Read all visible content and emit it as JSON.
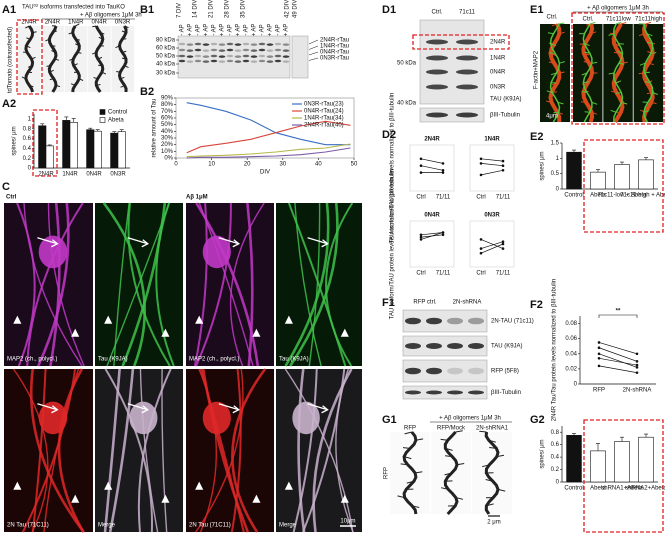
{
  "figure": {
    "A1": {
      "label": "A1",
      "title": "TAU⁰² isoforms transfected into TauKO",
      "treatment": "+ Aβ oligomers 1μM 3h",
      "columns": [
        "2N4R",
        "2N4R",
        "1N4R",
        "0N4R",
        "0N3R"
      ],
      "ylabel": "tdTomato (cotransfected)"
    },
    "A2": {
      "label": "A2",
      "chart_data": {
        "type": "bar",
        "ylabel": "spines/ μm",
        "categories": [
          "2N4R",
          "1N4R",
          "0N4R",
          "0N3R"
        ],
        "series": [
          {
            "name": "Control",
            "color": "#111111",
            "values": [
              0.86,
              0.97,
              0.78,
              0.71
            ],
            "errors": [
              0.04,
              0.07,
              0.03,
              0.03
            ]
          },
          {
            "name": "Abeta",
            "color": "#ffffff",
            "values": [
              0.45,
              0.93,
              0.75,
              0.74
            ],
            "errors": [
              0.02,
              0.08,
              0.03,
              0.04
            ]
          }
        ],
        "ylim": [
          0,
          1.1
        ],
        "yticks": [
          0,
          0.2,
          0.4,
          0.6,
          0.8,
          1
        ],
        "legend": "upper right"
      }
    },
    "B1": {
      "label": "B1",
      "days": [
        "7 DIV",
        "14 DIV",
        "21 DIV",
        "28 DIV",
        "35 DIV",
        "42 DIV",
        "49 DIV"
      ],
      "treatments": [
        "- AP",
        "+ AP"
      ],
      "markers": [
        "80 kDa",
        "60 kDa",
        "50 kDa",
        "40 kDa",
        "30 kDa"
      ],
      "bands": [
        "2N4R-rTau",
        "1N4R-rTau",
        "0N4R-rTau",
        "0N3R-rTau"
      ]
    },
    "B2": {
      "label": "B2",
      "chart_data": {
        "type": "line",
        "ylabel": "relative amount of Tau",
        "xlabel": "DIV",
        "x": [
          3,
          7,
          14,
          21,
          28,
          35,
          42,
          49
        ],
        "series": [
          {
            "name": "0N3R-rTau(23)",
            "color": "#3a6fc4",
            "values": [
              83,
              79,
              70,
              57,
              38,
              28,
              20,
              20
            ]
          },
          {
            "name": "0N4R-rTau(24)",
            "color": "#d9453a",
            "values": [
              8,
              17,
              22,
              28,
              38,
              48,
              55,
              49
            ]
          },
          {
            "name": "1N4R-rTau(34)",
            "color": "#b7b64a",
            "values": [
              2,
              3,
              4,
              6,
              9,
              13,
              15,
              21
            ]
          },
          {
            "name": "2N4R-rTau(40)",
            "color": "#7a5aa6",
            "values": [
              0,
              1,
              1,
              2,
              3,
              5,
              9,
              15
            ]
          }
        ],
        "xlim": [
          0,
          50
        ],
        "xticks": [
          0,
          10,
          20,
          30,
          40,
          50
        ],
        "ylim": [
          0,
          90
        ],
        "yticks": [
          {
            "value": 0,
            "label": "0%"
          },
          {
            "value": 10,
            "label": "10%"
          },
          {
            "value": 20,
            "label": "20%"
          },
          {
            "value": 30,
            "label": "30%"
          },
          {
            "value": 40,
            "label": "40%"
          },
          {
            "value": 50,
            "label": "50%"
          },
          {
            "value": 60,
            "label": "60%"
          },
          {
            "value": 70,
            "label": "70%"
          },
          {
            "value": 80,
            "label": "80%"
          },
          {
            "value": 90,
            "label": "90%"
          }
        ],
        "legend": "upper right"
      }
    },
    "C": {
      "label": "C",
      "control": "Ctrl",
      "treated": "Aβ 1μM",
      "channels": [
        "MAP2 (ch., polycl.)",
        "Tau (K9JA)",
        "2N Tau (71C11)",
        "Merge"
      ],
      "scale": "10μm"
    },
    "D1": {
      "label": "D1",
      "lanes": [
        "Ctrl.",
        "71c11"
      ],
      "bands": [
        "2N4R",
        "1N4R",
        "0N4R",
        "0N3R"
      ],
      "antibody": "TAU (K9JA)",
      "loading": "βIII-Tubulin",
      "markers": [
        "50 kDa",
        "40 kDa"
      ]
    },
    "D2": {
      "label": "D2",
      "ylabels": [
        "TAU isoform/TAU protein levels normalized to βIII-tubulin",
        "TAU isoform/TAU protein levels normalized to βIII-tubulin"
      ],
      "plots": [
        {
          "chart_data": {
            "type": "paired",
            "title": "2N4R",
            "categories": [
              "Ctrl",
              "71/11"
            ],
            "ylim": [
              0,
              1
            ],
            "series": [
              {
                "values": [
                  0.7,
                  0.6
                ]
              },
              {
                "values": [
                  0.55,
                  0.45
                ]
              },
              {
                "values": [
                  0.4,
                  0.4
                ]
              }
            ]
          }
        },
        {
          "chart_data": {
            "type": "paired",
            "title": "1N4R",
            "categories": [
              "Ctrl",
              "71/11"
            ],
            "ylim": [
              0,
              1
            ],
            "series": [
              {
                "values": [
                  0.7,
                  0.65
                ]
              },
              {
                "values": [
                  0.6,
                  0.55
                ]
              },
              {
                "values": [
                  0.35,
                  0.45
                ]
              }
            ]
          }
        },
        {
          "chart_data": {
            "type": "paired",
            "title": "0N4R",
            "categories": [
              "Ctrl",
              "71/11"
            ],
            "ylim": [
              0,
              1
            ],
            "series": [
              {
                "values": [
                  0.7,
                  0.75
                ]
              },
              {
                "values": [
                  0.65,
                  0.7
                ]
              },
              {
                "values": [
                  0.6,
                  0.75
                ]
              }
            ]
          }
        },
        {
          "chart_data": {
            "type": "paired",
            "title": "0N3R",
            "categories": [
              "Ctrl",
              "71/11"
            ],
            "ylim": [
              0,
              1
            ],
            "series": [
              {
                "values": [
                  0.6,
                  0.4
                ]
              },
              {
                "values": [
                  0.4,
                  0.55
                ]
              },
              {
                "values": [
                  0.3,
                  0.5
                ]
              }
            ]
          }
        }
      ]
    },
    "E1": {
      "label": "E1",
      "control": "Ctrl.",
      "treatment": "+ Aβ oligomers 1μM 3h",
      "columns": [
        "Ctrl.",
        "71c11low",
        "71c11high"
      ],
      "stain": "F-actin+MAP2",
      "scale": "4μm"
    },
    "E2": {
      "label": "E2",
      "chart_data": {
        "type": "bar",
        "ylabel": "spines/ μm",
        "categories": [
          "Control",
          "Abeta",
          "71c11-low + Abeta",
          "71c11-high + Abeta"
        ],
        "values": [
          1.2,
          0.55,
          0.8,
          0.95
        ],
        "errors": [
          0.07,
          0.08,
          0.08,
          0.07
        ],
        "colors": [
          "#111111",
          "#ffffff",
          "#ffffff",
          "#ffffff"
        ],
        "ylim": [
          0,
          1.5
        ],
        "yticks": [
          0,
          0.5,
          1,
          1.5
        ]
      }
    },
    "F1": {
      "label": "F1",
      "lanes": [
        "RFP ctrl.",
        "2N-shRNA"
      ],
      "rows": [
        "2N-TAU (71c11)",
        "TAU (K9JA)",
        "RFP (5F8)",
        "βIII-Tubulin"
      ]
    },
    "F2": {
      "label": "F2",
      "chart_data": {
        "type": "paired",
        "ylabel": "2N4R Tau/Tau protein levels normalized to βIII-tubulin",
        "categories": [
          "RFP",
          "2N-shRNA"
        ],
        "ylim": [
          0,
          0.09
        ],
        "yticks": [
          0,
          0.02,
          0.04,
          0.06,
          0.08
        ],
        "series": [
          {
            "values": [
              0.055,
              0.04
            ]
          },
          {
            "values": [
              0.048,
              0.03
            ]
          },
          {
            "values": [
              0.04,
              0.022
            ]
          },
          {
            "values": [
              0.034,
              0.025
            ]
          },
          {
            "values": [
              0.024,
              0.015
            ]
          }
        ],
        "significance": "**"
      }
    },
    "G1": {
      "label": "G1",
      "treatment": "+ Aβ oligomers 1μM 3h",
      "columns": [
        "RFP",
        "RFP/Mock",
        "2N-shRNA1"
      ],
      "ylabel": "RFP",
      "scale": "2 μm"
    },
    "G2": {
      "label": "G2",
      "chart_data": {
        "type": "bar",
        "ylabel": "spines/ μm",
        "categories": [
          "Control",
          "Abeta",
          "shRNA1+Abeta",
          "shRNA2+Abeta"
        ],
        "values": [
          0.75,
          0.5,
          0.65,
          0.72
        ],
        "errors": [
          0.03,
          0.12,
          0.07,
          0.05
        ],
        "colors": [
          "#111111",
          "#ffffff",
          "#ffffff",
          "#ffffff"
        ],
        "ylim": [
          0,
          0.9
        ],
        "yticks": [
          0,
          0.2,
          0.4,
          0.6,
          0.8
        ]
      }
    }
  }
}
